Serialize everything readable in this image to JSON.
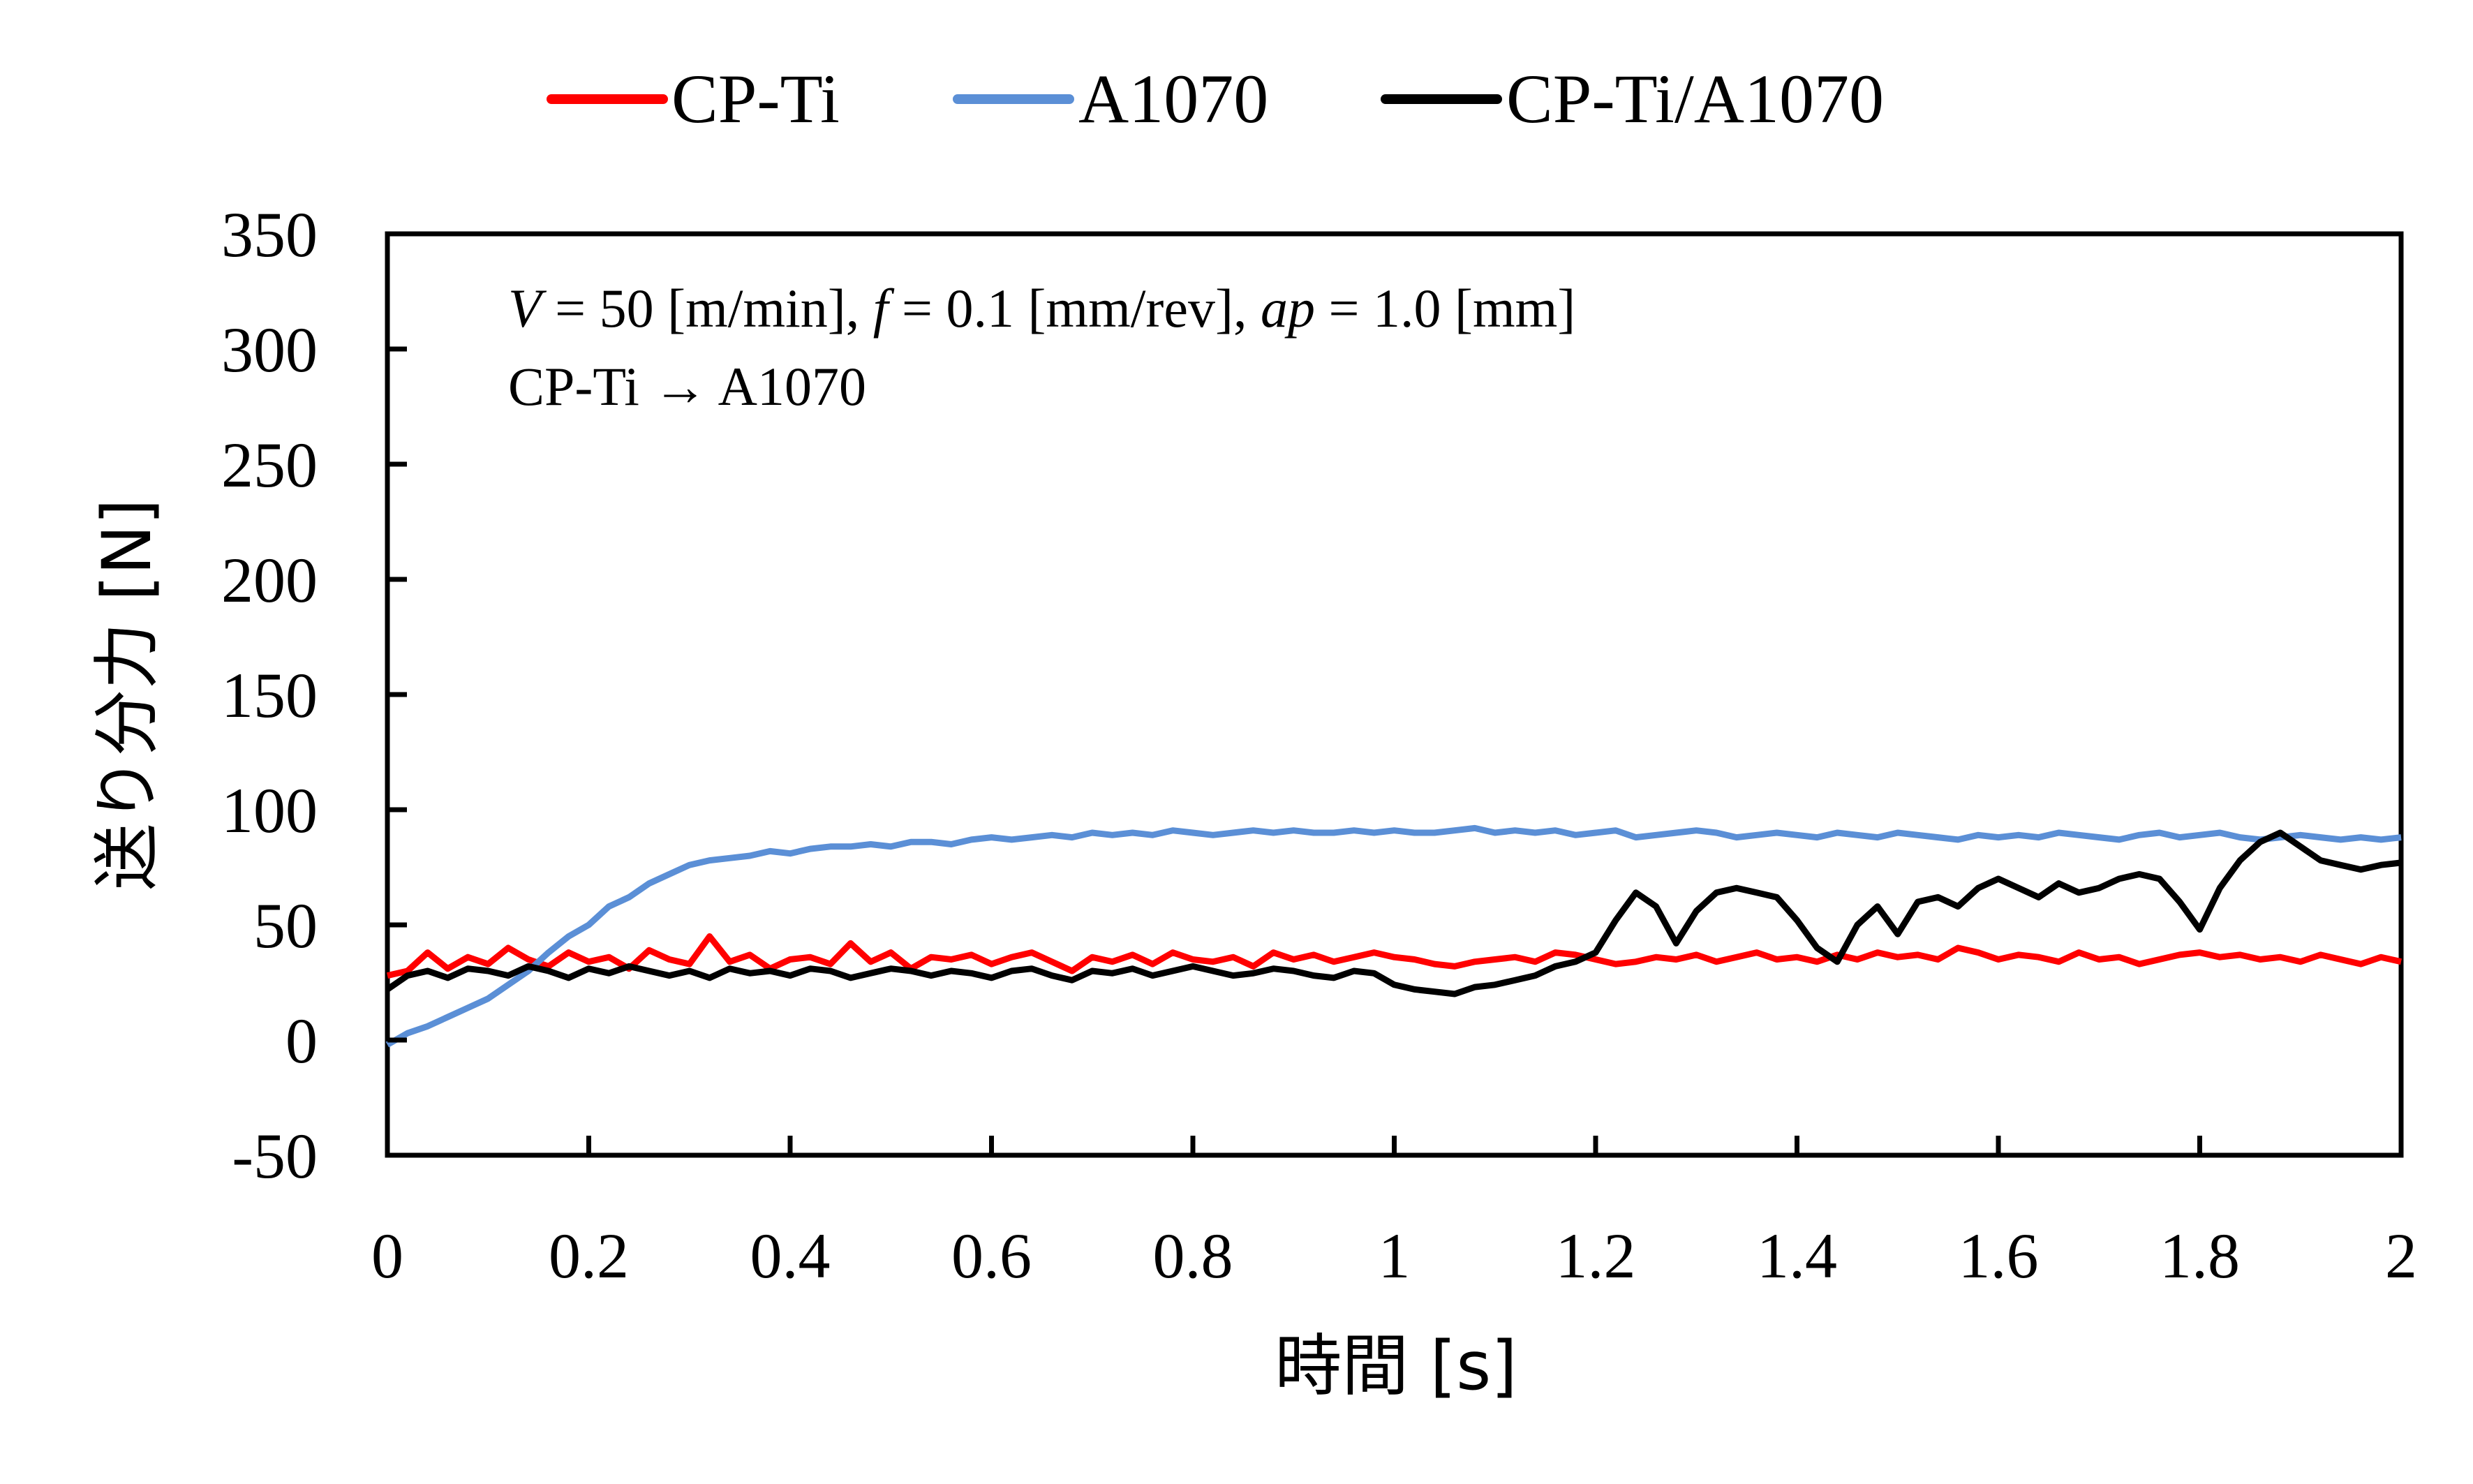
{
  "chart_data": {
    "type": "line",
    "title": "",
    "xlabel": "時間 [s]",
    "ylabel": "送り分力 [N]",
    "xlim": [
      0,
      2
    ],
    "ylim": [
      -50,
      350
    ],
    "x_ticks": [
      0,
      0.2,
      0.4,
      0.6,
      0.8,
      1,
      1.2,
      1.4,
      1.6,
      1.8,
      2
    ],
    "x_tick_labels": [
      "0",
      "0.2",
      "0.4",
      "0.6",
      "0.8",
      "1",
      "1.2",
      "1.4",
      "1.6",
      "1.8",
      "2"
    ],
    "y_ticks": [
      -50,
      0,
      50,
      100,
      150,
      200,
      250,
      300,
      350
    ],
    "y_tick_labels": [
      "-50",
      "0",
      "50",
      "100",
      "150",
      "200",
      "250",
      "300",
      "350"
    ],
    "grid": false,
    "legend_position": "top-center",
    "annotations": [
      {
        "parts": [
          {
            "text": "V",
            "italic": true
          },
          {
            "text": " = 50 [m/min], ",
            "italic": false
          },
          {
            "text": "f",
            "italic": true
          },
          {
            "text": " = 0.1 [mm/rev], ",
            "italic": false
          },
          {
            "text": "ap",
            "italic": true
          },
          {
            "text": " = 1.0 [mm]",
            "italic": false
          }
        ]
      },
      {
        "parts": [
          {
            "text": "CP-Ti → A1070",
            "italic": false
          }
        ]
      }
    ],
    "x": [
      0,
      0.02,
      0.04,
      0.06,
      0.08,
      0.1,
      0.12,
      0.14,
      0.16,
      0.18,
      0.2,
      0.22,
      0.24,
      0.26,
      0.28,
      0.3,
      0.32,
      0.34,
      0.36,
      0.38,
      0.4,
      0.42,
      0.44,
      0.46,
      0.48,
      0.5,
      0.52,
      0.54,
      0.56,
      0.58,
      0.6,
      0.62,
      0.64,
      0.66,
      0.68,
      0.7,
      0.72,
      0.74,
      0.76,
      0.78,
      0.8,
      0.82,
      0.84,
      0.86,
      0.88,
      0.9,
      0.92,
      0.94,
      0.96,
      0.98,
      1,
      1.02,
      1.04,
      1.06,
      1.08,
      1.1,
      1.12,
      1.14,
      1.16,
      1.18,
      1.2,
      1.22,
      1.24,
      1.26,
      1.28,
      1.3,
      1.32,
      1.34,
      1.36,
      1.38,
      1.4,
      1.42,
      1.44,
      1.46,
      1.48,
      1.5,
      1.52,
      1.54,
      1.56,
      1.58,
      1.6,
      1.62,
      1.64,
      1.66,
      1.68,
      1.7,
      1.72,
      1.74,
      1.76,
      1.78,
      1.8,
      1.82,
      1.84,
      1.86,
      1.88,
      1.9,
      1.92,
      1.94,
      1.96,
      1.98,
      2
    ],
    "series": [
      {
        "name": "CP-Ti",
        "color": "#ff0000",
        "values": [
          28,
          30,
          38,
          31,
          36,
          33,
          40,
          35,
          32,
          38,
          34,
          36,
          31,
          39,
          35,
          33,
          45,
          34,
          37,
          31,
          35,
          36,
          33,
          42,
          34,
          38,
          31,
          36,
          35,
          37,
          33,
          36,
          38,
          34,
          30,
          36,
          34,
          37,
          33,
          38,
          35,
          34,
          36,
          32,
          38,
          35,
          37,
          34,
          36,
          38,
          36,
          35,
          33,
          32,
          34,
          35,
          36,
          34,
          38,
          37,
          35,
          33,
          34,
          36,
          35,
          37,
          34,
          36,
          38,
          35,
          36,
          34,
          37,
          35,
          38,
          36,
          37,
          35,
          40,
          38,
          35,
          37,
          36,
          34,
          38,
          35,
          36,
          33,
          35,
          37,
          38,
          36,
          37,
          35,
          36,
          34,
          37,
          35,
          33,
          36,
          34
        ]
      },
      {
        "name": "A1070",
        "color": "#5b8fd6",
        "values": [
          -2,
          3,
          6,
          10,
          14,
          18,
          24,
          30,
          38,
          45,
          50,
          58,
          62,
          68,
          72,
          76,
          78,
          79,
          80,
          82,
          81,
          83,
          84,
          84,
          85,
          84,
          86,
          86,
          85,
          87,
          88,
          87,
          88,
          89,
          88,
          90,
          89,
          90,
          89,
          91,
          90,
          89,
          90,
          91,
          90,
          91,
          90,
          90,
          91,
          90,
          91,
          90,
          90,
          91,
          92,
          90,
          91,
          90,
          91,
          89,
          90,
          91,
          88,
          89,
          90,
          91,
          90,
          88,
          89,
          90,
          89,
          88,
          90,
          89,
          88,
          90,
          89,
          88,
          87,
          89,
          88,
          89,
          88,
          90,
          89,
          88,
          87,
          89,
          90,
          88,
          89,
          90,
          88,
          87,
          88,
          89,
          88,
          87,
          88,
          87,
          88
        ]
      },
      {
        "name": "CP-Ti/A1070",
        "color": "#000000",
        "values": [
          22,
          28,
          30,
          27,
          31,
          30,
          28,
          32,
          30,
          27,
          31,
          29,
          32,
          30,
          28,
          30,
          27,
          31,
          29,
          30,
          28,
          31,
          30,
          27,
          29,
          31,
          30,
          28,
          30,
          29,
          27,
          30,
          31,
          28,
          26,
          30,
          29,
          31,
          28,
          30,
          32,
          30,
          28,
          29,
          31,
          30,
          28,
          27,
          30,
          29,
          24,
          22,
          21,
          20,
          23,
          24,
          26,
          28,
          32,
          34,
          38,
          52,
          64,
          58,
          42,
          56,
          64,
          66,
          64,
          62,
          52,
          40,
          34,
          50,
          58,
          46,
          60,
          62,
          58,
          66,
          70,
          66,
          62,
          68,
          64,
          66,
          70,
          72,
          70,
          60,
          48,
          66,
          78,
          86,
          90,
          84,
          78,
          76,
          74,
          76,
          77
        ]
      }
    ]
  }
}
